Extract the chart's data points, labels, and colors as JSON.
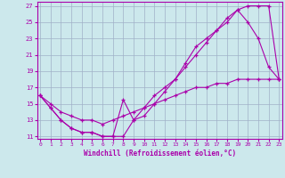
{
  "xlabel": "Windchill (Refroidissement éolien,°C)",
  "bg_color": "#cce8ec",
  "grid_color": "#a0b0c8",
  "line_color": "#aa00aa",
  "xlim": [
    -0.3,
    23.3
  ],
  "ylim": [
    10.7,
    27.5
  ],
  "xticks": [
    0,
    1,
    2,
    3,
    4,
    5,
    6,
    7,
    8,
    9,
    10,
    11,
    12,
    13,
    14,
    15,
    16,
    17,
    18,
    19,
    20,
    21,
    22,
    23
  ],
  "yticks": [
    11,
    13,
    15,
    17,
    19,
    21,
    23,
    25,
    27
  ],
  "line1_x": [
    0,
    1,
    2,
    3,
    4,
    5,
    6,
    7,
    8,
    9,
    10,
    11,
    12,
    13,
    14,
    15,
    16,
    17,
    18,
    19,
    20,
    21,
    22,
    23
  ],
  "line1_y": [
    16.0,
    14.5,
    13.0,
    12.0,
    11.5,
    11.5,
    11.0,
    11.0,
    11.0,
    13.0,
    14.5,
    16.0,
    17.0,
    18.0,
    19.5,
    21.0,
    22.5,
    24.0,
    25.5,
    26.5,
    27.0,
    27.0,
    27.0,
    18.0
  ],
  "line2_x": [
    0,
    1,
    2,
    3,
    4,
    5,
    6,
    7,
    8,
    9,
    10,
    11,
    12,
    13,
    14,
    15,
    16,
    17,
    18,
    19,
    20,
    21,
    22,
    23
  ],
  "line2_y": [
    16.0,
    14.5,
    13.0,
    12.0,
    11.5,
    11.5,
    11.0,
    11.0,
    15.5,
    13.0,
    13.5,
    15.0,
    16.5,
    18.0,
    20.0,
    22.0,
    23.0,
    24.0,
    25.0,
    26.5,
    25.0,
    23.0,
    19.5,
    18.0
  ],
  "line3_x": [
    0,
    1,
    2,
    3,
    4,
    5,
    6,
    7,
    8,
    9,
    10,
    11,
    12,
    13,
    14,
    15,
    16,
    17,
    18,
    19,
    20,
    21,
    22,
    23
  ],
  "line3_y": [
    16.0,
    15.0,
    14.0,
    13.5,
    13.0,
    13.0,
    12.5,
    13.0,
    13.5,
    14.0,
    14.5,
    15.0,
    15.5,
    16.0,
    16.5,
    17.0,
    17.0,
    17.5,
    17.5,
    18.0,
    18.0,
    18.0,
    18.0,
    18.0
  ]
}
